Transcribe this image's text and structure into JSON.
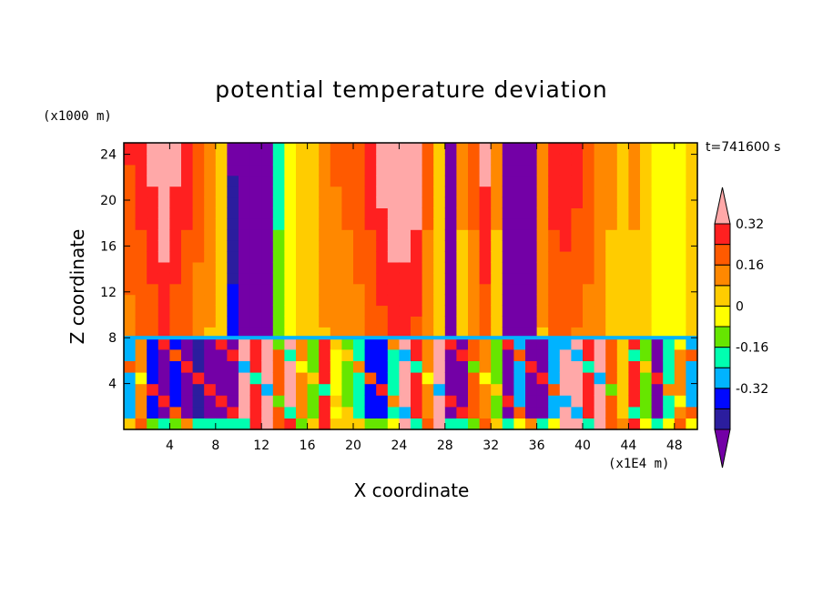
{
  "chart_data": {
    "type": "heatmap",
    "title": "potential temperature deviation",
    "xlabel": "X coordinate",
    "ylabel": "Z coordinate",
    "x_unit": "(x1E4 m)",
    "z_unit": "(x1000 m)",
    "time_label": "t=741600 s",
    "xlim": [
      0,
      50
    ],
    "ylim": [
      0,
      25
    ],
    "x_ticks": [
      4,
      8,
      12,
      16,
      20,
      24,
      28,
      32,
      36,
      40,
      44,
      48
    ],
    "y_ticks": [
      4,
      8,
      12,
      16,
      20,
      24
    ],
    "colorbar": {
      "levels": [
        -0.48,
        -0.4,
        -0.32,
        -0.24,
        -0.16,
        -0.08,
        0,
        0.08,
        0.16,
        0.24,
        0.32,
        0.4
      ],
      "labels": [
        "0.32",
        "0.16",
        "0",
        "-0.16",
        "-0.32"
      ],
      "label_values": [
        0.32,
        0.16,
        0,
        -0.16,
        -0.32
      ],
      "colors": [
        "#7300a6",
        "#2b1d9e",
        "#0008ff",
        "#00b3ff",
        "#00ffb0",
        "#66e600",
        "#ffff00",
        "#ffcc00",
        "#ff8800",
        "#ff5a00",
        "#ff2020",
        "#ffa8a8"
      ],
      "extend": "both"
    },
    "upper_layer": {
      "z_range": [
        8,
        25
      ],
      "description_values_by_x": [
        {
          "x": 0.5,
          "v": 0.25
        },
        {
          "x": 1.5,
          "v": 0.3
        },
        {
          "x": 2.5,
          "v": 0.36
        },
        {
          "x": 3.5,
          "v": 0.44
        },
        {
          "x": 4.5,
          "v": 0.36
        },
        {
          "x": 5.5,
          "v": 0.3
        },
        {
          "x": 6.5,
          "v": 0.22
        },
        {
          "x": 7.5,
          "v": 0.14
        },
        {
          "x": 8.5,
          "v": 0.06
        },
        {
          "x": 9.5,
          "v": -0.3
        },
        {
          "x": 10.5,
          "v": -0.5
        },
        {
          "x": 11.5,
          "v": -0.5
        },
        {
          "x": 12.5,
          "v": -0.5
        },
        {
          "x": 13.5,
          "v": -0.2
        },
        {
          "x": 14.5,
          "v": -0.05
        },
        {
          "x": 15.5,
          "v": 0.02
        },
        {
          "x": 16.5,
          "v": 0.08
        },
        {
          "x": 17.5,
          "v": 0.14
        },
        {
          "x": 18.5,
          "v": 0.18
        },
        {
          "x": 19.5,
          "v": 0.2
        },
        {
          "x": 20.5,
          "v": 0.24
        },
        {
          "x": 21.5,
          "v": 0.3
        },
        {
          "x": 22.5,
          "v": 0.38
        },
        {
          "x": 23.5,
          "v": 0.44
        },
        {
          "x": 24.5,
          "v": 0.44
        },
        {
          "x": 25.5,
          "v": 0.4
        },
        {
          "x": 26.5,
          "v": 0.2
        },
        {
          "x": 27.5,
          "v": 0.0
        },
        {
          "x": 28.5,
          "v": -0.5
        },
        {
          "x": 29.5,
          "v": 0.1
        },
        {
          "x": 30.5,
          "v": 0.2
        },
        {
          "x": 31.5,
          "v": 0.36
        },
        {
          "x": 32.5,
          "v": 0.1
        },
        {
          "x": 33.5,
          "v": -0.5
        },
        {
          "x": 34.5,
          "v": -0.5
        },
        {
          "x": 35.5,
          "v": -0.5
        },
        {
          "x": 36.5,
          "v": 0.14
        },
        {
          "x": 37.5,
          "v": 0.3
        },
        {
          "x": 38.5,
          "v": 0.32
        },
        {
          "x": 39.5,
          "v": 0.28
        },
        {
          "x": 40.5,
          "v": 0.24
        },
        {
          "x": 41.5,
          "v": 0.16
        },
        {
          "x": 42.5,
          "v": 0.1
        },
        {
          "x": 43.5,
          "v": 0.06
        },
        {
          "x": 44.5,
          "v": 0.1
        },
        {
          "x": 45.5,
          "v": 0.04
        },
        {
          "x": 46.5,
          "v": -0.02
        },
        {
          "x": 47.5,
          "v": -0.08
        },
        {
          "x": 48.5,
          "v": -0.04
        },
        {
          "x": 49.5,
          "v": 0.04
        }
      ]
    },
    "lower_layer": {
      "z_range": [
        0,
        8
      ],
      "description_values_by_x": [
        {
          "x": 0.5,
          "v": -0.3
        },
        {
          "x": 1.5,
          "v": 0.1
        },
        {
          "x": 2.5,
          "v": -0.4
        },
        {
          "x": 3.5,
          "v": -0.5
        },
        {
          "x": 4.5,
          "v": -0.35
        },
        {
          "x": 5.5,
          "v": -0.5
        },
        {
          "x": 6.5,
          "v": -0.45
        },
        {
          "x": 7.5,
          "v": -0.5
        },
        {
          "x": 8.5,
          "v": -0.5
        },
        {
          "x": 9.5,
          "v": -0.5
        },
        {
          "x": 10.5,
          "v": 0.44
        },
        {
          "x": 11.5,
          "v": 0.3
        },
        {
          "x": 12.5,
          "v": 0.44
        },
        {
          "x": 13.5,
          "v": 0.2
        },
        {
          "x": 14.5,
          "v": 0.36
        },
        {
          "x": 15.5,
          "v": 0.1
        },
        {
          "x": 16.5,
          "v": -0.1
        },
        {
          "x": 17.5,
          "v": 0.3
        },
        {
          "x": 18.5,
          "v": -0.05
        },
        {
          "x": 19.5,
          "v": -0.1
        },
        {
          "x": 20.5,
          "v": -0.2
        },
        {
          "x": 21.5,
          "v": -0.35
        },
        {
          "x": 22.5,
          "v": -0.4
        },
        {
          "x": 23.5,
          "v": -0.2
        },
        {
          "x": 24.5,
          "v": 0.44
        },
        {
          "x": 25.5,
          "v": 0.3
        },
        {
          "x": 26.5,
          "v": 0.1
        },
        {
          "x": 27.5,
          "v": 0.44
        },
        {
          "x": 28.5,
          "v": -0.5
        },
        {
          "x": 29.5,
          "v": -0.5
        },
        {
          "x": 30.5,
          "v": 0.2
        },
        {
          "x": 31.5,
          "v": 0.1
        },
        {
          "x": 32.5,
          "v": -0.1
        },
        {
          "x": 33.5,
          "v": -0.5
        },
        {
          "x": 34.5,
          "v": -0.3
        },
        {
          "x": 35.5,
          "v": -0.5
        },
        {
          "x": 36.5,
          "v": -0.5
        },
        {
          "x": 37.5,
          "v": -0.3
        },
        {
          "x": 38.5,
          "v": 0.44
        },
        {
          "x": 39.5,
          "v": 0.44
        },
        {
          "x": 40.5,
          "v": 0.3
        },
        {
          "x": 41.5,
          "v": 0.44
        },
        {
          "x": 42.5,
          "v": 0.2
        },
        {
          "x": 43.5,
          "v": 0.0
        },
        {
          "x": 44.5,
          "v": 0.3
        },
        {
          "x": 45.5,
          "v": -0.1
        },
        {
          "x": 46.5,
          "v": -0.5
        },
        {
          "x": 47.5,
          "v": -0.2
        },
        {
          "x": 48.5,
          "v": 0.1
        },
        {
          "x": 49.5,
          "v": -0.3
        }
      ]
    }
  }
}
